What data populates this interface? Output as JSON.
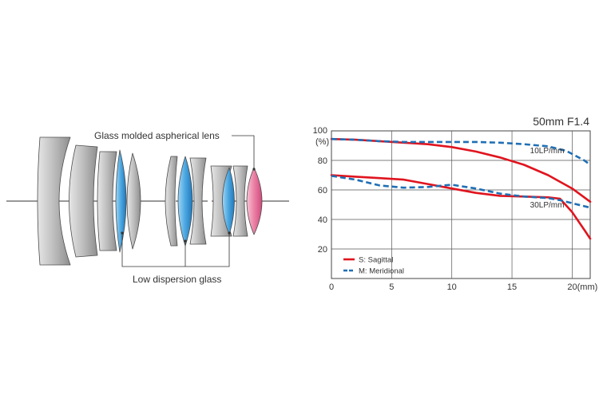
{
  "lens_diagram": {
    "labels": {
      "aspherical": "Glass molded aspherical lens",
      "low_dispersion": "Low dispersion glass"
    },
    "colors": {
      "element_gray": "#b9b9b9",
      "element_blue": "#4aa6e0",
      "element_pink": "#ea7ea3",
      "outline": "#4d4d4d",
      "axis": "#333333"
    }
  },
  "chart_data": {
    "type": "line",
    "title": "50mm F1.4",
    "y_unit_label": "(%)",
    "x_unit_label": "20(mm)",
    "xlim": [
      0,
      21.5
    ],
    "ylim": [
      0,
      100
    ],
    "x_ticks": [
      0,
      5,
      10,
      15,
      20
    ],
    "x_tick_labels": [
      "0",
      "5",
      "10",
      "15",
      "20(mm)"
    ],
    "y_ticks": [
      20,
      40,
      60,
      80,
      100
    ],
    "y_tick_labels": [
      "20",
      "40",
      "60",
      "80",
      "100"
    ],
    "grid": true,
    "legend": {
      "placement": "bottom-left",
      "entries": [
        {
          "label": "S: Sagittal",
          "color": "#e0141e",
          "dash": "solid"
        },
        {
          "label": "M: Meridional",
          "color": "#1f6fb5",
          "dash": "dashed"
        }
      ]
    },
    "annotations": [
      {
        "text": "10LP/mm",
        "x": 16.5,
        "y": 85
      },
      {
        "text": "30LP/mm",
        "x": 16.5,
        "y": 48
      }
    ],
    "series": [
      {
        "name": "S: Sagittal",
        "group": "10LP/mm",
        "color": "#e0141e",
        "dash": "solid",
        "x": [
          0,
          2,
          4,
          6,
          8,
          10,
          12,
          14,
          16,
          18,
          20,
          21.5
        ],
        "y": [
          94.5,
          94,
          93,
          92,
          91,
          89,
          86,
          82,
          77,
          70,
          61,
          52
        ]
      },
      {
        "name": "M: Meridional",
        "group": "10LP/mm",
        "color": "#1f6fb5",
        "dash": "dashed",
        "x": [
          0,
          2,
          4,
          6,
          8,
          10,
          12,
          14,
          16,
          18,
          19.5,
          21,
          21.5
        ],
        "y": [
          94.5,
          94,
          93,
          92.5,
          92.5,
          92.5,
          92.5,
          92,
          91,
          89.5,
          86.5,
          80,
          77
        ]
      },
      {
        "name": "S: Sagittal",
        "group": "30LP/mm",
        "color": "#e0141e",
        "dash": "solid",
        "x": [
          0,
          2,
          4,
          6,
          8,
          10,
          12,
          14,
          16,
          18,
          19,
          20,
          21,
          21.5
        ],
        "y": [
          70,
          69,
          68,
          67,
          64,
          61,
          58,
          56,
          55.5,
          55,
          54,
          45,
          33,
          27
        ]
      },
      {
        "name": "M: Meridional",
        "group": "30LP/mm",
        "color": "#1f6fb5",
        "dash": "dashed",
        "x": [
          0,
          2,
          4,
          6,
          8,
          10,
          12,
          14,
          16,
          18,
          19,
          20,
          21,
          21.5
        ],
        "y": [
          69.5,
          67,
          63,
          61.5,
          62,
          63.5,
          61,
          57.5,
          55.5,
          54.5,
          53,
          51,
          49,
          48
        ]
      }
    ]
  }
}
